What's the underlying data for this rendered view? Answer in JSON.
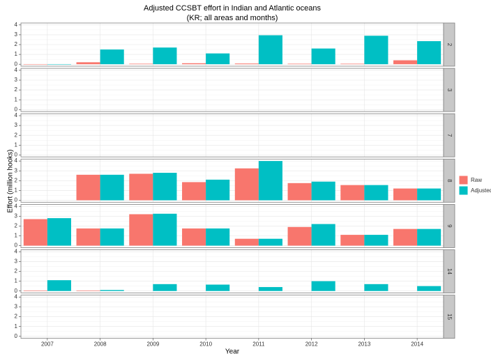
{
  "chart_data": {
    "type": "bar",
    "title": "Adjusted CCSBT effort in Indian and Atlantic oceans",
    "subtitle": "(KR; all areas and months)",
    "x_label": "Year",
    "y_label": "Effort (million hooks)",
    "categories": [
      "2007",
      "2008",
      "2009",
      "2010",
      "2011",
      "2012",
      "2013",
      "2014"
    ],
    "series": [
      {
        "name": "Raw",
        "color": "#F8766D"
      },
      {
        "name": "Adjusted",
        "color": "#00BFC4"
      }
    ],
    "ylim": [
      -0.2,
      4.2
    ],
    "yticks": [
      0,
      1,
      2,
      3,
      4
    ],
    "grid": true,
    "legend": "right",
    "facets": [
      {
        "label": "2",
        "series": [
          {
            "values": [
              0,
              0.2,
              0.05,
              0.1,
              0.07,
              0.05,
              0.05,
              0.4
            ]
          },
          {
            "values": [
              0,
              1.5,
              1.7,
              1.1,
              2.95,
              1.6,
              2.9,
              2.35
            ]
          }
        ]
      },
      {
        "label": "3",
        "series": [
          {
            "values": [
              null,
              null,
              null,
              null,
              null,
              null,
              null,
              null
            ]
          },
          {
            "values": [
              null,
              null,
              null,
              null,
              null,
              null,
              null,
              null
            ]
          }
        ]
      },
      {
        "label": "7",
        "series": [
          {
            "values": [
              null,
              null,
              null,
              null,
              null,
              null,
              null,
              null
            ]
          },
          {
            "values": [
              null,
              null,
              null,
              null,
              null,
              null,
              null,
              null
            ]
          }
        ]
      },
      {
        "label": "8",
        "series": [
          {
            "values": [
              null,
              2.6,
              2.7,
              1.85,
              3.25,
              1.75,
              1.55,
              1.2
            ]
          },
          {
            "values": [
              null,
              2.6,
              2.8,
              2.1,
              4.0,
              1.9,
              1.55,
              1.2
            ]
          }
        ]
      },
      {
        "label": "9",
        "series": [
          {
            "values": [
              2.7,
              1.75,
              3.2,
              1.75,
              0.7,
              1.9,
              1.1,
              1.7
            ]
          },
          {
            "values": [
              2.8,
              1.75,
              3.25,
              1.75,
              0.7,
              2.2,
              1.1,
              1.7
            ]
          }
        ]
      },
      {
        "label": "14",
        "series": [
          {
            "values": [
              0.05,
              0.05,
              null,
              null,
              null,
              null,
              null,
              null
            ]
          },
          {
            "values": [
              1.1,
              0.1,
              0.7,
              0.65,
              0.4,
              1.0,
              0.7,
              0.5
            ]
          }
        ]
      },
      {
        "label": "15",
        "series": [
          {
            "values": [
              null,
              null,
              null,
              null,
              null,
              null,
              null,
              null
            ]
          },
          {
            "values": [
              null,
              null,
              null,
              null,
              null,
              null,
              null,
              null
            ]
          }
        ]
      }
    ]
  }
}
